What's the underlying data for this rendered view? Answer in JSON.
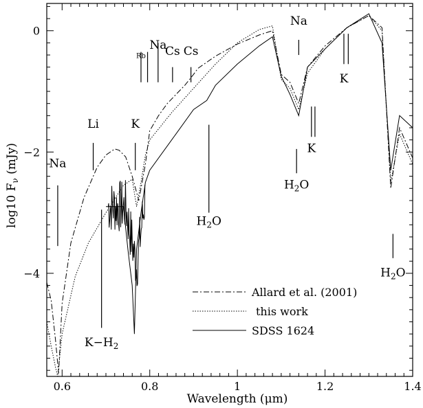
{
  "chart_data": {
    "type": "line",
    "xlabel": "Wavelength (μm)",
    "ylabel": "log10 F",
    "ylabel_sub": "ν",
    "ylabel_unit": "(mJy)",
    "xlim": [
      0.565,
      1.4
    ],
    "ylim": [
      -5.7,
      0.45
    ],
    "x_ticks": [
      0.6,
      0.8,
      1,
      1.2,
      1.4
    ],
    "x_tick_labels": [
      "0.6",
      "0.8",
      "1",
      "1.2",
      "1.4"
    ],
    "y_ticks": [
      0,
      -2,
      -4
    ],
    "y_tick_labels": [
      "0",
      "−2",
      "−4"
    ],
    "series": [
      {
        "name": "Allard et al. (2001)",
        "style": "dashdot",
        "x": [
          0.565,
          0.575,
          0.585,
          0.592,
          0.6,
          0.62,
          0.65,
          0.68,
          0.7,
          0.72,
          0.73,
          0.745,
          0.76,
          0.775,
          0.79,
          0.8,
          0.82,
          0.84,
          0.86,
          0.88,
          0.9,
          0.91,
          0.93,
          0.95,
          1.0,
          1.05,
          1.08,
          1.1,
          1.12,
          1.14,
          1.16,
          1.2,
          1.25,
          1.3,
          1.33,
          1.35,
          1.37,
          1.4
        ],
        "y": [
          -4.15,
          -4.45,
          -5.1,
          -5.65,
          -4.5,
          -3.5,
          -2.75,
          -2.25,
          -2.05,
          -1.95,
          -1.97,
          -2.08,
          -2.4,
          -2.8,
          -2.2,
          -1.65,
          -1.4,
          -1.2,
          -1.05,
          -0.9,
          -0.72,
          -0.62,
          -0.52,
          -0.42,
          -0.22,
          -0.07,
          0.0,
          -0.72,
          -0.85,
          -1.2,
          -0.6,
          -0.25,
          0.05,
          0.25,
          0.05,
          -2.6,
          -1.6,
          -2.1
        ]
      },
      {
        "name": "this work",
        "style": "dotted",
        "x": [
          0.565,
          0.575,
          0.585,
          0.59,
          0.6,
          0.63,
          0.66,
          0.7,
          0.74,
          0.76,
          0.77,
          0.78,
          0.79,
          0.8,
          0.85,
          0.9,
          0.95,
          1.0,
          1.05,
          1.08,
          1.1,
          1.12,
          1.14,
          1.16,
          1.2,
          1.25,
          1.3,
          1.33,
          1.35,
          1.37,
          1.4
        ],
        "y": [
          -4.8,
          -5.2,
          -5.55,
          -5.7,
          -5.0,
          -4.05,
          -3.5,
          -3.0,
          -2.55,
          -2.45,
          -2.9,
          -2.5,
          -2.05,
          -1.8,
          -1.35,
          -0.95,
          -0.55,
          -0.2,
          0.02,
          0.08,
          -0.8,
          -0.95,
          -1.3,
          -0.7,
          -0.3,
          0.05,
          0.25,
          0.0,
          -2.5,
          -1.7,
          -2.2
        ]
      },
      {
        "name": "SDSS 1624",
        "style": "solid",
        "x": [
          0.7,
          0.72,
          0.74,
          0.75,
          0.76,
          0.765,
          0.77,
          0.78,
          0.79,
          0.8,
          0.85,
          0.9,
          0.93,
          0.95,
          1.0,
          1.05,
          1.08,
          1.1,
          1.12,
          1.14,
          1.16,
          1.2,
          1.25,
          1.3,
          1.33,
          1.35,
          1.37,
          1.4
        ],
        "y": [
          -2.9,
          -2.9,
          -2.9,
          -3.6,
          -4.2,
          -5.0,
          -3.6,
          -3.0,
          -2.5,
          -2.3,
          -1.8,
          -1.3,
          -1.15,
          -0.9,
          -0.55,
          -0.25,
          -0.1,
          -0.75,
          -1.05,
          -1.4,
          -0.6,
          -0.3,
          0.05,
          0.28,
          -0.2,
          -2.3,
          -1.4,
          -1.6
        ]
      }
    ],
    "legend_placement": "bottom-right",
    "annotations": [
      {
        "label": "Na",
        "x": 0.59,
        "label_y": -2.25,
        "y_top": -2.55,
        "y_bottom": -3.55
      },
      {
        "label": "Li",
        "x": 0.671,
        "label_y": -1.6,
        "y_top": -1.85,
        "y_bottom": -2.3
      },
      {
        "label": "K",
        "x": 0.767,
        "label_y": -1.6,
        "y_top": -1.85,
        "y_bottom": -2.3
      },
      {
        "label": "Rb",
        "x": 0.78,
        "label_y": -0.45,
        "y_top": -0.35,
        "y_bottom": -0.85,
        "small": true
      },
      {
        "label": "Rb",
        "x": 0.795,
        "label_y": -0.45,
        "y_top": -0.35,
        "y_bottom": -0.85,
        "small": true,
        "hide_label": true
      },
      {
        "label": "Na",
        "x": 0.819,
        "label_y": -0.3,
        "y_top": -0.2,
        "y_bottom": -0.85
      },
      {
        "label": "Cs",
        "x": 0.852,
        "label_y": -0.4,
        "y_top": -0.6,
        "y_bottom": -0.85
      },
      {
        "label": "Cs",
        "x": 0.894,
        "label_y": -0.4,
        "y_top": -0.6,
        "y_bottom": -0.85
      },
      {
        "label": "Na",
        "x": 1.14,
        "label_y": 0.1,
        "y_top": -0.15,
        "y_bottom": -0.4
      },
      {
        "label": "K",
        "x": 1.243,
        "label_y": -0.85,
        "y_top": -0.05,
        "y_bottom": -0.55
      },
      {
        "label": "K",
        "x": 1.253,
        "label_y": -0.85,
        "y_top": -0.05,
        "y_bottom": -0.55,
        "hide_label": true
      },
      {
        "label": "K",
        "x": 1.169,
        "label_y": -2.0,
        "y_top": -1.25,
        "y_bottom": -1.75
      },
      {
        "label": "K",
        "x": 1.177,
        "label_y": -2.0,
        "y_top": -1.25,
        "y_bottom": -1.75,
        "hide_label": true
      },
      {
        "label": "H2O",
        "x": 1.135,
        "label_y": -2.6,
        "y_top": -1.95,
        "y_bottom": -2.35,
        "subscript": true
      },
      {
        "label": "H2O",
        "x": 0.935,
        "label_y": -3.2,
        "y_top": -1.55,
        "y_bottom": -3.0,
        "subscript": true
      },
      {
        "label": "H2O",
        "x": 1.355,
        "label_y": -4.05,
        "y_top": -3.35,
        "y_bottom": -3.75,
        "subscript": true
      },
      {
        "label": "K−H2",
        "x": 0.69,
        "label_y": -5.2,
        "y_top": -2.95,
        "y_bottom": -4.9,
        "subscript": true
      }
    ],
    "legend": [
      {
        "label": "Allard et al. (2001)",
        "style": "dashdot"
      },
      {
        "label": "this work",
        "style": "dotted"
      },
      {
        "label": "SDSS 1624",
        "style": "solid"
      }
    ]
  }
}
